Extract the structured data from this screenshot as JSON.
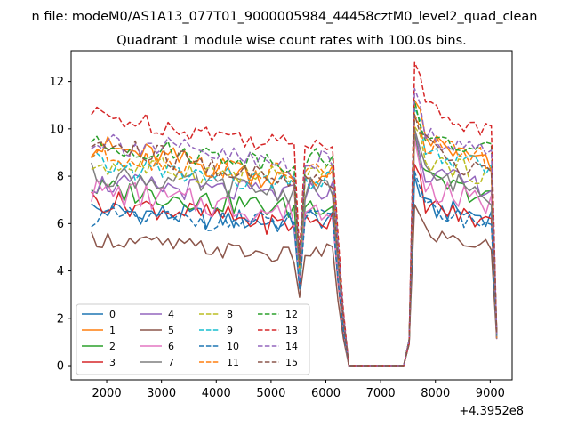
{
  "suptitle": "n file: modeM0/AS1A13_077T01_9000005984_44458cztM0_level2_quad_clean",
  "chart_data": {
    "type": "line",
    "title": "Quadrant 1 module wise count rates with 100.0s bins.",
    "xlabel": "",
    "ylabel": "",
    "x_offset_label": "+4.3952e8",
    "xlim": [
      1350,
      9400
    ],
    "ylim": [
      -0.6,
      13.3
    ],
    "xticks": [
      2000,
      3000,
      4000,
      5000,
      6000,
      7000,
      8000,
      9000
    ],
    "xtick_labels": [
      "2000",
      "3000",
      "4000",
      "5000",
      "6000",
      "7000",
      "8000",
      "9000"
    ],
    "yticks": [
      0,
      2,
      4,
      6,
      8,
      10,
      12
    ],
    "ytick_labels": [
      "0",
      "2",
      "4",
      "6",
      "8",
      "10",
      "12"
    ],
    "grid": false,
    "legend_position": "lower-left",
    "legend_columns": 4,
    "series": [
      {
        "name": "0",
        "color": "#1f77b4",
        "dash": "solid",
        "base": 6.6,
        "slope": -0.1,
        "mid_end": 6.0,
        "post": [
          8.0,
          6.6,
          6.5,
          6.3
        ],
        "noise": 0.45
      },
      {
        "name": "1",
        "color": "#ff7f0e",
        "dash": "solid",
        "base": 9.3,
        "slope": -1.6,
        "mid_end": 7.8,
        "post": [
          11.2,
          9.6,
          9.0,
          8.4
        ],
        "noise": 0.5
      },
      {
        "name": "2",
        "color": "#2ca02c",
        "dash": "solid",
        "base": 7.5,
        "slope": -0.9,
        "mid_end": 6.6,
        "post": [
          9.8,
          7.8,
          7.5,
          7.0
        ],
        "noise": 0.45
      },
      {
        "name": "3",
        "color": "#d62728",
        "dash": "solid",
        "base": 7.0,
        "slope": -1.2,
        "mid_end": 5.9,
        "post": [
          8.5,
          6.8,
          6.4,
          6.0
        ],
        "noise": 0.45
      },
      {
        "name": "4",
        "color": "#9467bd",
        "dash": "solid",
        "base": 7.7,
        "slope": -0.5,
        "mid_end": 7.2,
        "post": [
          10.0,
          8.1,
          7.8,
          7.5
        ],
        "noise": 0.45
      },
      {
        "name": "5",
        "color": "#8c564b",
        "dash": "solid",
        "base": 5.4,
        "slope": -0.9,
        "mid_end": 4.6,
        "post": [
          6.8,
          5.6,
          5.3,
          5.0
        ],
        "noise": 0.35
      },
      {
        "name": "6",
        "color": "#e377c2",
        "dash": "solid",
        "base": 7.4,
        "slope": -1.0,
        "mid_end": 6.4,
        "post": [
          9.6,
          7.5,
          7.1,
          6.8
        ],
        "noise": 0.55
      },
      {
        "name": "7",
        "color": "#7f7f7f",
        "dash": "solid",
        "base": 8.1,
        "slope": -0.9,
        "mid_end": 7.3,
        "post": [
          10.0,
          8.0,
          7.7,
          7.2
        ],
        "noise": 0.45
      },
      {
        "name": "8",
        "color": "#bcbd22",
        "dash": "dashed",
        "base": 8.5,
        "slope": -0.6,
        "mid_end": 7.9,
        "post": [
          10.1,
          8.7,
          8.3,
          8.0
        ],
        "noise": 0.45
      },
      {
        "name": "9",
        "color": "#17becf",
        "dash": "dashed",
        "base": 8.5,
        "slope": -1.0,
        "mid_end": 7.6,
        "post": [
          10.9,
          9.0,
          8.6,
          8.3
        ],
        "noise": 0.45
      },
      {
        "name": "10",
        "color": "#1f77b4",
        "dash": "dashed",
        "base": 6.3,
        "slope": -0.3,
        "mid_end": 6.0,
        "post": [
          8.2,
          6.6,
          6.3,
          6.0
        ],
        "noise": 0.4
      },
      {
        "name": "11",
        "color": "#ff7f0e",
        "dash": "dashed",
        "base": 9.0,
        "slope": -1.2,
        "mid_end": 8.0,
        "post": [
          10.6,
          9.3,
          9.0,
          8.7
        ],
        "noise": 0.45
      },
      {
        "name": "12",
        "color": "#2ca02c",
        "dash": "dashed",
        "base": 9.3,
        "slope": -0.8,
        "mid_end": 8.6,
        "post": [
          11.2,
          9.5,
          9.3,
          9.0
        ],
        "noise": 0.4
      },
      {
        "name": "13",
        "color": "#d62728",
        "dash": "dashed",
        "base": 10.6,
        "slope": -1.3,
        "mid_end": 9.3,
        "post": [
          12.8,
          11.0,
          10.3,
          9.9
        ],
        "noise": 0.4
      },
      {
        "name": "14",
        "color": "#9467bd",
        "dash": "dashed",
        "base": 9.6,
        "slope": -1.4,
        "mid_end": 8.4,
        "post": [
          11.7,
          9.7,
          9.4,
          9.0
        ],
        "noise": 0.5
      },
      {
        "name": "15",
        "color": "#8c564b",
        "dash": "dashed",
        "base": 9.4,
        "slope": -1.8,
        "mid_end": 7.7,
        "post": [
          10.6,
          9.2,
          8.6,
          8.1
        ],
        "noise": 0.5
      }
    ]
  }
}
